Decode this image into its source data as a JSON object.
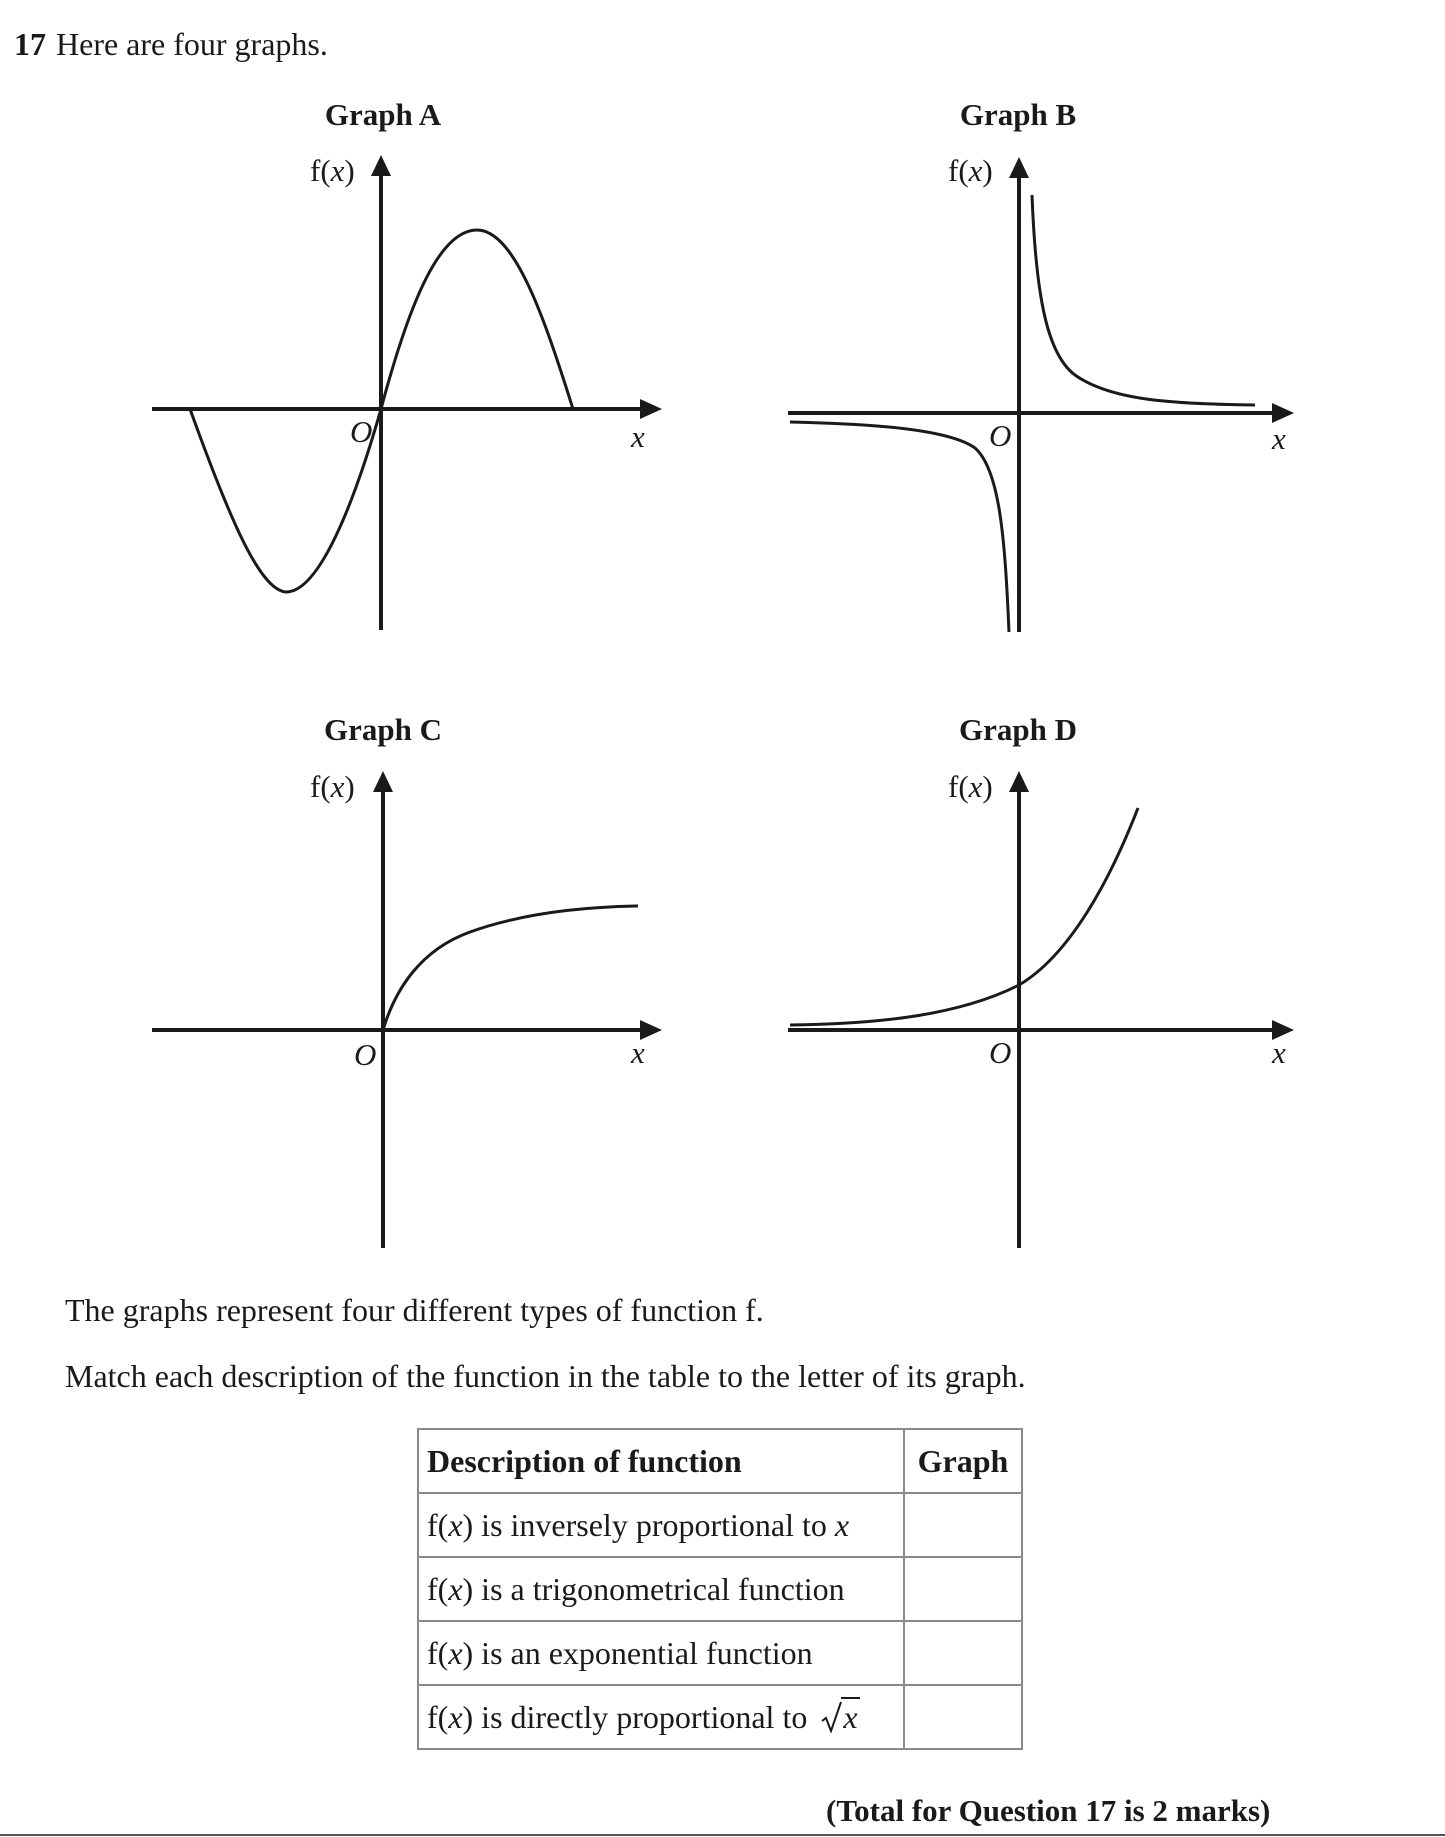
{
  "question": {
    "number": "17",
    "intro": "Here are four graphs."
  },
  "graphs": [
    {
      "letter": "A",
      "title": "Graph A",
      "y_axis": "f(",
      "y_axis_var": "x",
      "y_axis_close": ")",
      "x_axis": "x",
      "origin": "O",
      "function_type": "sine"
    },
    {
      "letter": "B",
      "title": "Graph B",
      "y_axis": "f(",
      "y_axis_var": "x",
      "y_axis_close": ")",
      "x_axis": "x",
      "origin": "O",
      "function_type": "reciprocal"
    },
    {
      "letter": "C",
      "title": "Graph C",
      "y_axis": "f(",
      "y_axis_var": "x",
      "y_axis_close": ")",
      "x_axis": "x",
      "origin": "O",
      "function_type": "square-root"
    },
    {
      "letter": "D",
      "title": "Graph D",
      "y_axis": "f(",
      "y_axis_var": "x",
      "y_axis_close": ")",
      "x_axis": "x",
      "origin": "O",
      "function_type": "exponential"
    }
  ],
  "text": {
    "line1": "The graphs represent four different types of function f.",
    "line2": "Match each description of the function in the table to the letter of its graph."
  },
  "table": {
    "headers": [
      "Description of function",
      "Graph"
    ],
    "rows": [
      {
        "prefix": "f(",
        "var": "x",
        "mid": ") is inversely proportional to ",
        "suffix_var": "x",
        "graph": ""
      },
      {
        "prefix": "f(",
        "var": "x",
        "mid": ") is a trigonometrical function",
        "suffix_var": "",
        "graph": ""
      },
      {
        "prefix": "f(",
        "var": "x",
        "mid": ") is an exponential function",
        "suffix_var": "",
        "graph": ""
      },
      {
        "prefix": "f(",
        "var": "x",
        "mid": ") is directly proportional to ",
        "sqrt_var": "x",
        "graph": ""
      }
    ]
  },
  "total": "(Total for Question 17 is 2 marks)"
}
